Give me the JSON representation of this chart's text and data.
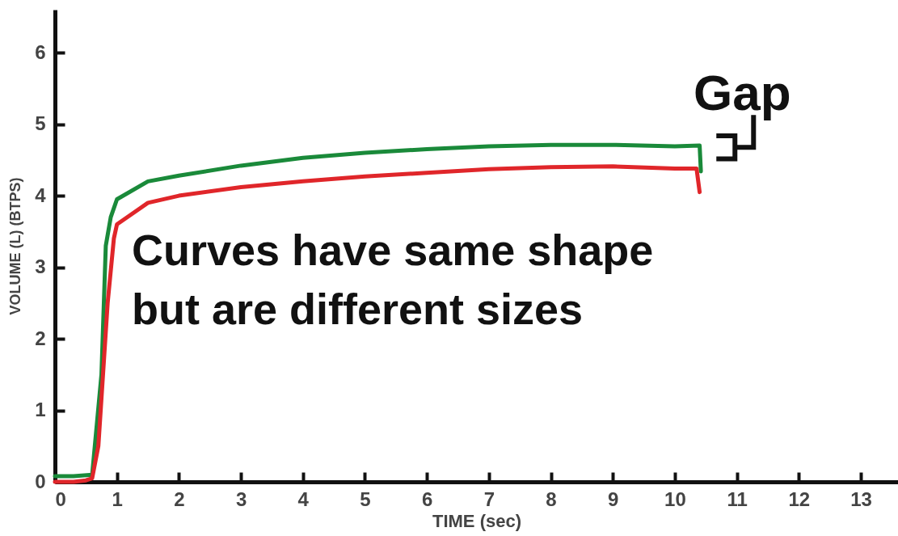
{
  "chart_data": {
    "type": "line",
    "xlabel": "TIME (sec)",
    "ylabel": "VOLUME (L) (BTPS)",
    "xlim": [
      0,
      13.6
    ],
    "ylim": [
      0,
      6.6
    ],
    "xticks": [
      0,
      1,
      2,
      3,
      4,
      5,
      6,
      7,
      8,
      9,
      10,
      11,
      12,
      13
    ],
    "yticks": [
      0,
      1,
      2,
      3,
      4,
      5,
      6
    ],
    "grid": false,
    "series": [
      {
        "color": "#1a8a3a",
        "x": [
          0,
          0.3,
          0.6,
          0.75,
          0.82,
          0.9,
          1,
          1.5,
          2,
          3,
          4,
          5,
          6,
          7,
          8,
          9,
          10,
          10.4,
          10.42
        ],
        "values": [
          0.08,
          0.08,
          0.1,
          1.5,
          3.3,
          3.7,
          3.95,
          4.2,
          4.28,
          4.42,
          4.53,
          4.6,
          4.65,
          4.69,
          4.71,
          4.71,
          4.69,
          4.7,
          4.34
        ]
      },
      {
        "color": "#e0262a",
        "x": [
          0,
          0.3,
          0.5,
          0.6,
          0.7,
          0.85,
          0.95,
          1,
          1.5,
          2,
          3,
          4,
          5,
          6,
          7,
          8,
          9,
          10,
          10.35,
          10.4
        ],
        "values": [
          0,
          0,
          0.02,
          0.05,
          0.5,
          2.5,
          3.4,
          3.6,
          3.9,
          4.0,
          4.12,
          4.2,
          4.27,
          4.32,
          4.37,
          4.4,
          4.41,
          4.38,
          4.38,
          4.05
        ]
      }
    ],
    "annotations": [
      "Curves have same shape but are different sizes",
      "Gap"
    ]
  }
}
